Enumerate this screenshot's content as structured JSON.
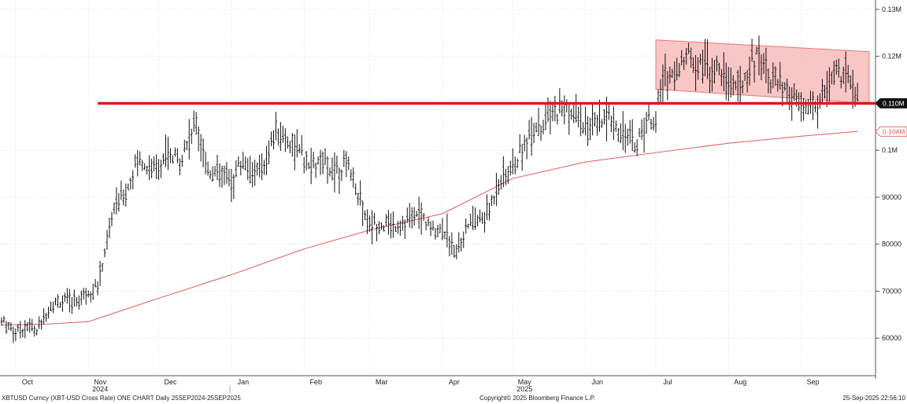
{
  "footer": {
    "left": "XBTUSD Curncy (XBT-USD Cross Rate) ONE CHART  Daily 25SEP2024-25SEP2025",
    "center": "Copyright© 2025 Bloomberg Finance L.P.",
    "right": "25-Sep-2025 22:56:10"
  },
  "chart_data": {
    "type": "line",
    "title": "",
    "xlabel": "",
    "ylabel": "",
    "ylim": [
      52000,
      132000
    ],
    "y_ticks": [
      {
        "value": 130000,
        "label": "0.13M"
      },
      {
        "value": 120000,
        "label": "0.12M"
      },
      {
        "value": 100000,
        "label": "0.1M"
      },
      {
        "value": 90000,
        "label": "90000"
      },
      {
        "value": 80000,
        "label": "80000"
      },
      {
        "value": 70000,
        "label": "70000"
      },
      {
        "value": 60000,
        "label": "60000"
      }
    ],
    "x_ticks": [
      {
        "date": "2024-10-01",
        "label": "Oct"
      },
      {
        "date": "2024-11-01",
        "label": "Nov"
      },
      {
        "date": "2024-12-01",
        "label": "Dec"
      },
      {
        "date": "2025-01-01",
        "label": "Jan"
      },
      {
        "date": "2025-02-01",
        "label": "Feb"
      },
      {
        "date": "2025-03-01",
        "label": "Mar"
      },
      {
        "date": "2025-04-01",
        "label": "Apr"
      },
      {
        "date": "2025-05-01",
        "label": "May"
      },
      {
        "date": "2025-06-01",
        "label": "Jun"
      },
      {
        "date": "2025-07-01",
        "label": "Jul"
      },
      {
        "date": "2025-08-01",
        "label": "Aug"
      },
      {
        "date": "2025-09-01",
        "label": "Sep"
      }
    ],
    "year_labels": [
      {
        "date": "2024-11-01",
        "label": "2024"
      },
      {
        "date": "2025-05-01",
        "label": "2025"
      }
    ],
    "price_series": {
      "style": "ohlc-bars",
      "color": "#111111",
      "x": [
        "2024-09-25",
        "2024-10-01",
        "2024-10-06",
        "2024-10-10",
        "2024-10-15",
        "2024-10-20",
        "2024-10-25",
        "2024-10-29",
        "2024-11-01",
        "2024-11-05",
        "2024-11-07",
        "2024-11-12",
        "2024-11-18",
        "2024-11-22",
        "2024-11-27",
        "2024-12-01",
        "2024-12-05",
        "2024-12-10",
        "2024-12-17",
        "2024-12-22",
        "2024-12-27",
        "2025-01-01",
        "2025-01-06",
        "2025-01-10",
        "2025-01-15",
        "2025-01-20",
        "2025-01-26",
        "2025-02-01",
        "2025-02-03",
        "2025-02-09",
        "2025-02-14",
        "2025-02-20",
        "2025-02-26",
        "2025-03-01",
        "2025-03-05",
        "2025-03-10",
        "2025-03-16",
        "2025-03-22",
        "2025-03-28",
        "2025-04-01",
        "2025-04-07",
        "2025-04-12",
        "2025-04-20",
        "2025-04-25",
        "2025-05-01",
        "2025-05-08",
        "2025-05-14",
        "2025-05-22",
        "2025-05-27",
        "2025-06-01",
        "2025-06-06",
        "2025-06-11",
        "2025-06-16",
        "2025-06-22",
        "2025-06-27",
        "2025-07-01",
        "2025-07-04",
        "2025-07-10",
        "2025-07-14",
        "2025-07-19",
        "2025-07-25",
        "2025-08-01",
        "2025-08-06",
        "2025-08-10",
        "2025-08-14",
        "2025-08-19",
        "2025-08-25",
        "2025-08-30",
        "2025-09-04",
        "2025-09-10",
        "2025-09-15",
        "2025-09-20",
        "2025-09-25"
      ],
      "y": [
        63500,
        61500,
        62500,
        61500,
        66500,
        68000,
        67500,
        69000,
        70000,
        71000,
        76000,
        88000,
        92000,
        98500,
        96000,
        97000,
        98000,
        98000,
        106000,
        96000,
        95000,
        93500,
        98000,
        95000,
        97000,
        104000,
        102000,
        98000,
        96500,
        97000,
        96000,
        97000,
        88000,
        84000,
        84500,
        84000,
        84500,
        86500,
        83000,
        83500,
        79000,
        84000,
        86000,
        93500,
        96000,
        103500,
        106000,
        109000,
        107500,
        105000,
        105000,
        107000,
        104500,
        101000,
        106000,
        107500,
        115000,
        117000,
        120000,
        119000,
        117500,
        115000,
        113500,
        117500,
        121000,
        116000,
        112000,
        110000,
        108500,
        111000,
        116000,
        117000,
        110500
      ]
    },
    "moving_average": {
      "color": "#e05a5a",
      "x": [
        "2024-09-25",
        "2024-10-15",
        "2024-11-01",
        "2024-12-01",
        "2025-01-01",
        "2025-02-01",
        "2025-03-01",
        "2025-04-01",
        "2025-05-01",
        "2025-06-01",
        "2025-07-01",
        "2025-08-01",
        "2025-09-01",
        "2025-09-25"
      ],
      "y": [
        62800,
        63000,
        63500,
        68500,
        73500,
        79000,
        83000,
        86500,
        94000,
        97500,
        99500,
        101500,
        103000,
        104000
      ],
      "last_value_label": "0.104M"
    },
    "horizontal_level": {
      "value": 110000,
      "from": "2024-11-05",
      "color": "#e8141c",
      "label": "0.110M"
    },
    "channel": {
      "color": "#f5a9a9",
      "upper": [
        {
          "x": "2025-07-01",
          "y": 123500
        },
        {
          "x": "2025-09-30",
          "y": 121000
        }
      ],
      "lower": [
        {
          "x": "2025-07-01",
          "y": 113000
        },
        {
          "x": "2025-09-30",
          "y": 110000
        }
      ]
    }
  }
}
